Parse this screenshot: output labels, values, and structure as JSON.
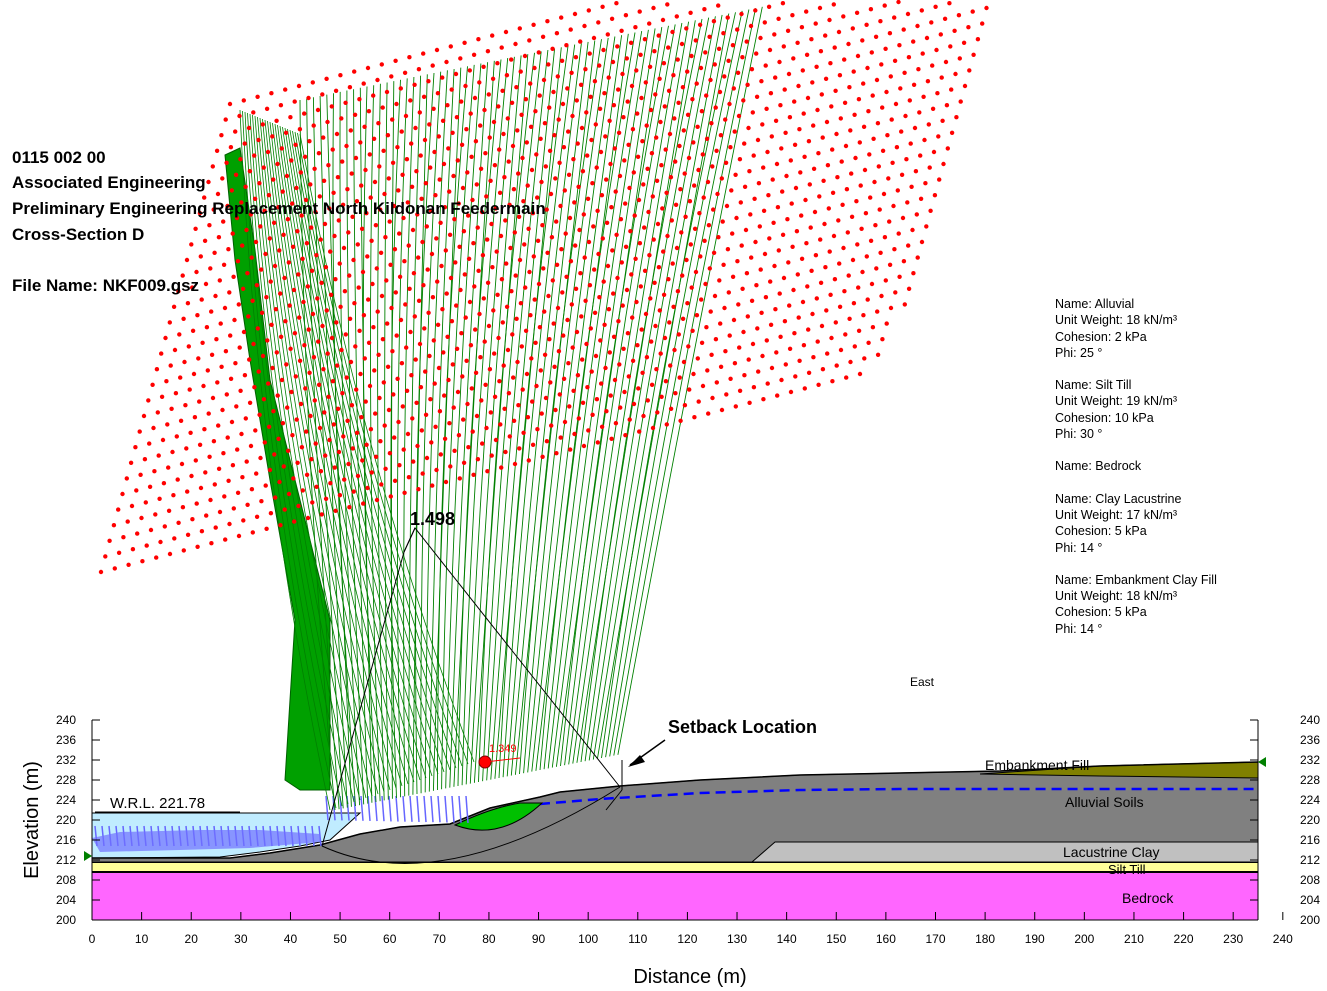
{
  "header": {
    "line1": "0115 002 00",
    "line2": "Associated Engineering",
    "line3": "Preliminary Engineering Replacement North Kildonan Feedermain",
    "line4": "Cross-Section D",
    "file_name": "File Name: NKF009.gsz"
  },
  "materials": [
    {
      "name": "Name: Alluvial",
      "unit_weight": "Unit Weight: 18 kN/m³",
      "cohesion": "Cohesion: 2 kPa",
      "phi": "Phi: 25 °"
    },
    {
      "name": "Name: Silt Till",
      "unit_weight": "Unit Weight: 19 kN/m³",
      "cohesion": "Cohesion: 10 kPa",
      "phi": "Phi: 30 °"
    },
    {
      "name": "Name: Bedrock"
    },
    {
      "name": "Name: Clay Lacustrine",
      "unit_weight": "Unit Weight: 17 kN/m³",
      "cohesion": "Cohesion: 5 kPa",
      "phi": "Phi: 14 °"
    },
    {
      "name": "Name: Embankment Clay Fill",
      "unit_weight": "Unit Weight: 18 kN/m³",
      "cohesion": "Cohesion: 5 kPa",
      "phi": "Phi: 14 °"
    }
  ],
  "labels": {
    "fs_grid": "1.498",
    "fs_critical": "1.349",
    "setback": "Setback Location",
    "east": "East",
    "wrl": "W.R.L. 221.78",
    "embankment": "Embankment Fill",
    "alluvial": "Alluvial Soils",
    "lacustrine": "Lacustrine Clay",
    "silt_till": "Silt Till",
    "bedrock": "Bedrock"
  },
  "axes": {
    "x_title": "Distance (m)",
    "y_title": "Elevation (m)",
    "x_ticks": [
      "0",
      "10",
      "20",
      "30",
      "40",
      "50",
      "60",
      "70",
      "80",
      "90",
      "100",
      "110",
      "120",
      "130",
      "140",
      "150",
      "160",
      "170",
      "180",
      "190",
      "200",
      "210",
      "220",
      "230",
      "240"
    ],
    "y_ticks": [
      "240",
      "236",
      "232",
      "228",
      "224",
      "220",
      "216",
      "212",
      "208",
      "204",
      "200"
    ]
  },
  "colors": {
    "bedrock": "#ff66ff",
    "silt_till": "#ffff99",
    "lacustrine": "#c0c0c0",
    "alluvial": "#808080",
    "embankment": "#808000",
    "water": "#c0ecff",
    "piezometric": "#0000ff",
    "grid_dots": "#ff0000",
    "contours": "#008000",
    "pressure_arrows": "#6666ff"
  }
}
